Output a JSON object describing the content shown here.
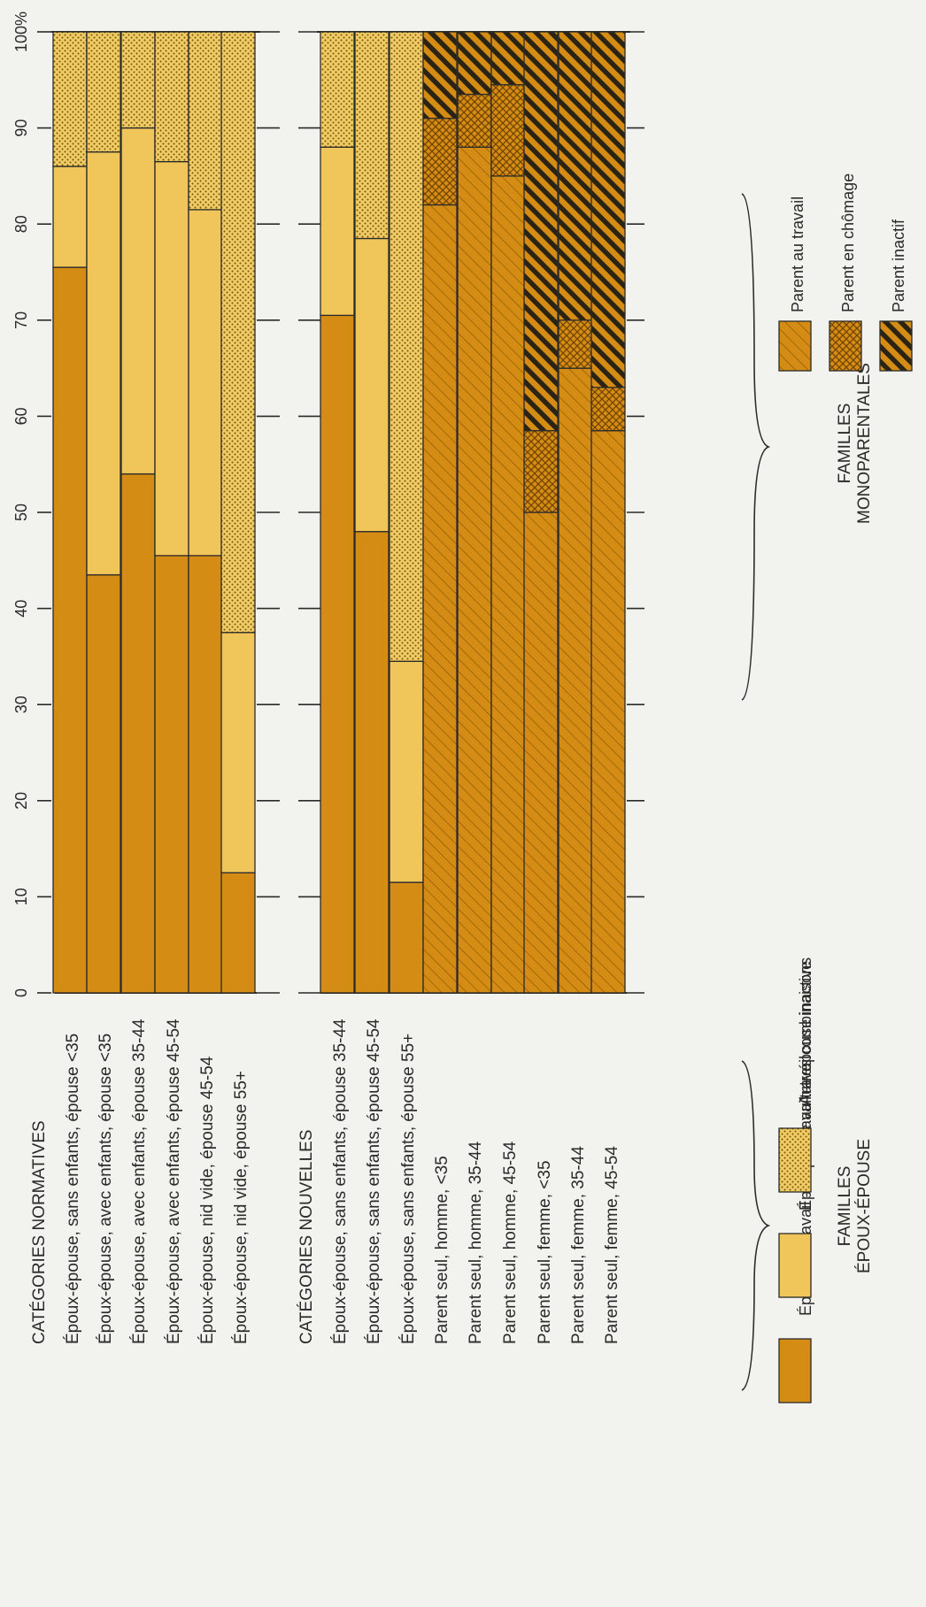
{
  "chart_data": {
    "type": "bar",
    "stacked": true,
    "orientation": "horizontal",
    "value_axis": {
      "min": 0,
      "max": 100,
      "ticks": [
        "0",
        "10",
        "20",
        "30",
        "40",
        "50",
        "60",
        "70",
        "80",
        "90",
        "100%"
      ]
    },
    "groups": [
      {
        "title": "CATÉGORIES NORMATIVES",
        "categories": [
          "Époux-épouse, sans enfants, épouse <35",
          "Époux-épouse, avec enfants, épouse <35",
          "Époux-épouse, avec enfants, épouse 35-44",
          "Époux-épouse, avec enfants, épouse 45-54",
          "Époux-épouse, nid vide, épouse 45-54",
          "Époux-épouse, nid vide, épouse 55+"
        ],
        "series_values": [
          [
            75.5,
            10.5,
            14.0
          ],
          [
            43.5,
            44.0,
            12.5
          ],
          [
            54.0,
            36.0,
            10.0
          ],
          [
            45.5,
            41.0,
            13.5
          ],
          [
            45.5,
            36.0,
            18.5
          ],
          [
            12.5,
            25.0,
            62.5
          ]
        ]
      },
      {
        "title": "CATÉGORIES NOUVELLES",
        "categories": [
          "Époux-épouse, sans enfants, épouse 35-44",
          "Époux-épouse, sans enfants, épouse 45-54",
          "Époux-épouse, sans enfants, épouse 55+"
        ],
        "series_values": [
          [
            70.5,
            17.5,
            12.0
          ],
          [
            48.0,
            30.5,
            21.5
          ],
          [
            11.5,
            23.0,
            65.5
          ]
        ]
      },
      {
        "title": "",
        "categories": [
          "Parent seul, homme, <35",
          "Parent seul, homme, 35-44",
          "Parent seul, homme, 45-54",
          "Parent seul, femme, <35",
          "Parent seul, femme, 35-44",
          "Parent seul, femme, 45-54"
        ],
        "series_values": [
          [
            82.0,
            9.0,
            9.0
          ],
          [
            88.0,
            5.5,
            6.5
          ],
          [
            85.0,
            9.5,
            5.5
          ],
          [
            50.0,
            8.5,
            41.5
          ],
          [
            65.0,
            5.0,
            30.0
          ],
          [
            58.5,
            4.5,
            37.0
          ]
        ]
      }
    ],
    "series_by_group": [
      [
        "Époux au travail — épouse au travail",
        "Époux au travail — épouse inactive",
        "Autres combinaisons"
      ],
      [
        "Époux au travail — épouse au travail",
        "Époux au travail — épouse inactive",
        "Autres combinaisons"
      ],
      [
        "Parent au travail",
        "Parent en chômage",
        "Parent inactif"
      ]
    ],
    "legend": {
      "left_group": {
        "title": "FAMILLES ÉPOUX-ÉPOUSE",
        "entries": [
          "Époux au travail — épouse au travail",
          "Époux au travail — épouse inactive",
          "Autres combinaisons"
        ]
      },
      "right_group": {
        "title": "FAMILLES MONOPARENTALES",
        "entries": [
          "Parent au travail",
          "Parent en chômage",
          "Parent inactif"
        ]
      },
      "placement": "bottom"
    },
    "grid": false,
    "colors": {
      "dark": "#d48c14",
      "light": "#f0c65a",
      "dotted_bg": "#f0cc66",
      "hatch": "#7a4a00",
      "ink": "#2a2a2a",
      "paper": "#f2f3ee"
    }
  }
}
